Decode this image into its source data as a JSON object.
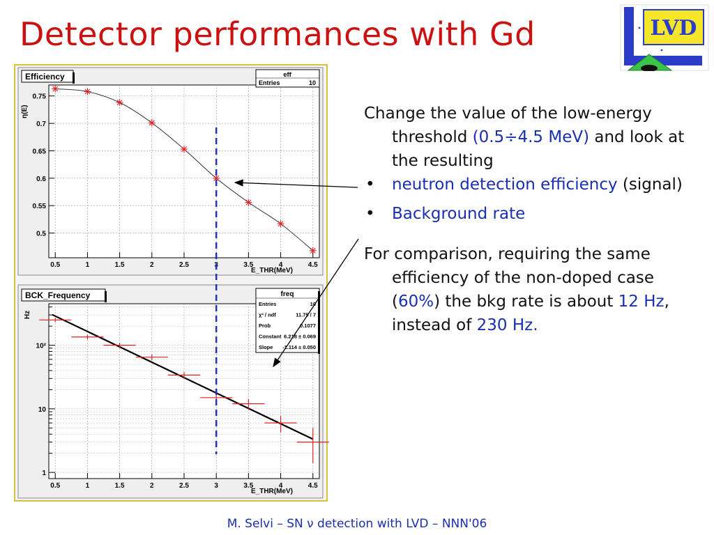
{
  "slide": {
    "title": "Detector performances with Gd",
    "footer": "M. Selvi – SN ν detection with LVD – NNN'06",
    "logo_text": "LVD"
  },
  "text": {
    "p1_a": "Change the value of the low-energy threshold ",
    "p1_b": "(0.5÷4.5 MeV)",
    "p1_c": " and look at the resulting",
    "bullet1_a": "neutron detection efficiency",
    "bullet1_b": " (signal)",
    "bullet2": "Background rate",
    "p2_a": "For comparison, requiring the same efficiency of the non-doped case (",
    "p2_b": "60%",
    "p2_c": ") the bkg rate is about ",
    "p2_d": "12 Hz",
    "p2_e": ", instead of ",
    "p2_f": "230 Hz.",
    "bullet_symbol": "•"
  },
  "colors": {
    "title": "#cc1111",
    "accent_blue": "#1a2fb0",
    "marker_red": "#e02020",
    "threshold_line": "#2233bb",
    "frame": "#d6c23a"
  },
  "chart_data": [
    {
      "type": "scatter",
      "title": "Efficiency",
      "stats": {
        "name": "eff",
        "rows": [
          [
            "Entries",
            "10"
          ]
        ]
      },
      "ylabel": "η(E)",
      "xlabel": "E_THR(MeV)",
      "xlim": [
        0.4,
        4.6
      ],
      "ylim": [
        0.455,
        0.77
      ],
      "x": [
        0.5,
        1.0,
        1.5,
        2.0,
        2.5,
        3.0,
        3.5,
        4.0,
        4.5
      ],
      "y": [
        0.763,
        0.758,
        0.738,
        0.701,
        0.653,
        0.6,
        0.556,
        0.517,
        0.468
      ],
      "xticks": [
        "0.5",
        "1",
        "1.5",
        "2",
        "2.5",
        "3",
        "3.5",
        "4",
        "4.5"
      ],
      "yticks": [
        "0.5",
        "0.55",
        "0.6",
        "0.65",
        "0.7",
        "0.75"
      ],
      "grid": true
    },
    {
      "type": "scatter",
      "title": "BCK_Frequency",
      "stats": {
        "name": "freq",
        "rows": [
          [
            "Entries",
            "10"
          ],
          [
            "χ² / ndf",
            "11.75 / 7"
          ],
          [
            "Prob",
            "0.1077"
          ],
          [
            "Constant",
            "6.218 ± 0.069"
          ],
          [
            "Slope",
            "-1.114 ± 0.050"
          ]
        ]
      },
      "ylabel": "Hz",
      "xlabel": "E_THR(MeV)",
      "xlim": [
        0.4,
        4.6
      ],
      "ylog": true,
      "ylim": [
        0.8,
        450
      ],
      "x": [
        0.5,
        1.0,
        1.5,
        2.0,
        2.5,
        3.0,
        3.5,
        4.0,
        4.5
      ],
      "y": [
        250,
        135,
        100,
        65,
        34,
        15,
        12,
        6,
        3
      ],
      "yerr": [
        [
          20,
          20
        ],
        [
          12,
          12
        ],
        [
          9,
          9
        ],
        [
          7,
          7
        ],
        [
          4,
          4
        ],
        [
          2.5,
          2.5
        ],
        [
          2.3,
          2.3
        ],
        [
          1.7,
          1.7
        ],
        [
          1.6,
          2.0
        ]
      ],
      "fit": {
        "constant": 6.218,
        "slope": -1.114
      },
      "xticks": [
        "0.5",
        "1",
        "1.5",
        "2",
        "2.5",
        "3",
        "3.5",
        "4",
        "4.5"
      ],
      "yticks": [
        "1",
        "10",
        "10²"
      ],
      "grid": true
    }
  ],
  "threshold_marker": {
    "x": 3.0
  }
}
